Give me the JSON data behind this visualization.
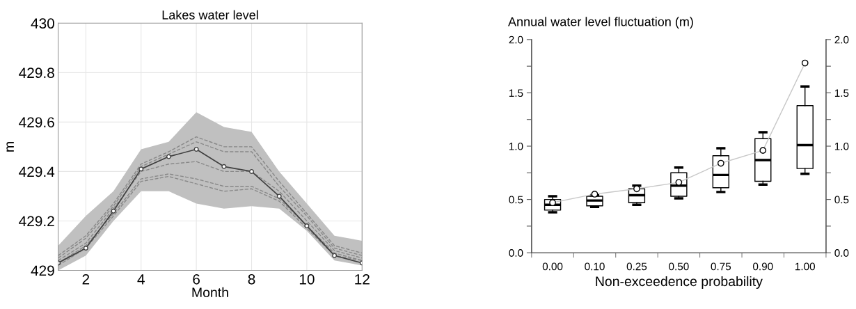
{
  "chart_data": [
    {
      "type": "line",
      "title": "Lakes water level",
      "xlabel": "Month",
      "ylabel": "m",
      "x": [
        1,
        2,
        3,
        4,
        5,
        6,
        7,
        8,
        9,
        10,
        11,
        12
      ],
      "xlim": [
        1,
        12
      ],
      "xticks": [
        2,
        4,
        6,
        8,
        10,
        12
      ],
      "ylim": [
        429,
        430
      ],
      "yticks": [
        {
          "value": 429,
          "label": "429"
        },
        429.2,
        429.4,
        429.6,
        429.8,
        {
          "value": 430,
          "label": "430"
        }
      ],
      "grid": true,
      "legend": false,
      "series": [
        {
          "color": "#888888",
          "line_style": "dashed",
          "marker": "none",
          "values": [
            429.06,
            429.14,
            429.27,
            429.43,
            429.48,
            429.54,
            429.5,
            429.5,
            429.36,
            429.23,
            429.1,
            429.07
          ]
        },
        {
          "color": "#888888",
          "line_style": "dashed",
          "marker": "none",
          "values": [
            429.05,
            429.13,
            429.26,
            429.42,
            429.47,
            429.52,
            429.48,
            429.48,
            429.34,
            429.22,
            429.09,
            429.06
          ]
        },
        {
          "color": "#888888",
          "line_style": "dashed",
          "marker": "none",
          "values": [
            429.04,
            429.11,
            429.25,
            429.4,
            429.43,
            429.44,
            429.4,
            429.4,
            429.32,
            429.2,
            429.08,
            429.05
          ],
          "lower": [
            429.0,
            429.06,
            429.2,
            429.32,
            429.32,
            429.27,
            429.25,
            429.26,
            429.25,
            429.16,
            429.04,
            429.02
          ],
          "upper": [
            429.1,
            429.22,
            429.32,
            429.49,
            429.52,
            429.64,
            429.58,
            429.56,
            429.4,
            429.27,
            429.14,
            429.12
          ]
        },
        {
          "color": "#888888",
          "line_style": "dashed",
          "marker": "none",
          "values": [
            429.03,
            429.1,
            429.23,
            429.37,
            429.39,
            429.37,
            429.34,
            429.34,
            429.29,
            429.18,
            429.07,
            429.04
          ]
        },
        {
          "color": "#888888",
          "line_style": "dashed",
          "marker": "none",
          "values": [
            429.02,
            429.09,
            429.22,
            429.36,
            429.38,
            429.35,
            429.32,
            429.33,
            429.28,
            429.17,
            429.06,
            429.04
          ]
        },
        {
          "color": "#404040",
          "line_style": "solid",
          "marker": "circle",
          "values": [
            429.03,
            429.09,
            429.24,
            429.41,
            429.46,
            429.49,
            429.42,
            429.4,
            429.3,
            429.18,
            429.06,
            429.03
          ]
        }
      ]
    },
    {
      "type": "box",
      "title": "Annual water level fluctuation (m)",
      "xlabel": "Non-exceedence probability",
      "categories": [
        "0.00",
        "0.10",
        "0.25",
        "0.50",
        "0.75",
        "0.90",
        "1.00"
      ],
      "ylim": [
        0,
        2
      ],
      "yticks": [
        {
          "value": 0,
          "label": "0.0"
        },
        {
          "value": 0.25,
          "label": null
        },
        {
          "value": 0.5,
          "label": "0.5"
        },
        {
          "value": 0.75,
          "label": null
        },
        {
          "value": 1,
          "label": "1.0"
        },
        {
          "value": 1.25,
          "label": null
        },
        {
          "value": 1.5,
          "label": "1.5"
        },
        {
          "value": 1.75,
          "label": null
        },
        {
          "value": 2,
          "label": "2.0"
        }
      ],
      "y2lim": [
        0,
        2
      ],
      "y2ticks": [
        {
          "value": 0,
          "label": "0.0"
        },
        {
          "value": 0.25,
          "label": null
        },
        {
          "value": 0.5,
          "label": "0.5"
        },
        {
          "value": 0.75,
          "label": null
        },
        {
          "value": 1,
          "label": "1.0"
        },
        {
          "value": 1.25,
          "label": null
        },
        {
          "value": 1.5,
          "label": "1.5"
        },
        {
          "value": 1.75,
          "label": null
        },
        {
          "value": 2,
          "label": "2.0"
        }
      ],
      "grid": false,
      "legend": false,
      "boxes": [
        {
          "low": 0.38,
          "q1": 0.4,
          "median": 0.45,
          "q3": 0.5,
          "high": 0.53
        },
        {
          "low": 0.43,
          "q1": 0.44,
          "median": 0.49,
          "q3": 0.53,
          "high": 0.54
        },
        {
          "low": 0.45,
          "q1": 0.47,
          "median": 0.54,
          "q3": 0.6,
          "high": 0.63
        },
        {
          "low": 0.51,
          "q1": 0.53,
          "median": 0.63,
          "q3": 0.75,
          "high": 0.8
        },
        {
          "low": 0.57,
          "q1": 0.61,
          "median": 0.73,
          "q3": 0.91,
          "high": 0.98
        },
        {
          "low": 0.64,
          "q1": 0.67,
          "median": 0.87,
          "q3": 1.07,
          "high": 1.13
        },
        {
          "low": 0.74,
          "q1": 0.79,
          "median": 1.01,
          "q3": 1.38,
          "high": 1.56
        }
      ],
      "series": [
        {
          "type": "line",
          "color": "#c8c8c8",
          "marker": "circle",
          "x": [
            "0.00",
            "0.10",
            "0.25",
            "0.50",
            "0.75",
            "0.90",
            "1.00"
          ],
          "values": [
            0.47,
            0.55,
            0.6,
            0.66,
            0.84,
            0.96,
            1.78
          ]
        }
      ]
    }
  ]
}
